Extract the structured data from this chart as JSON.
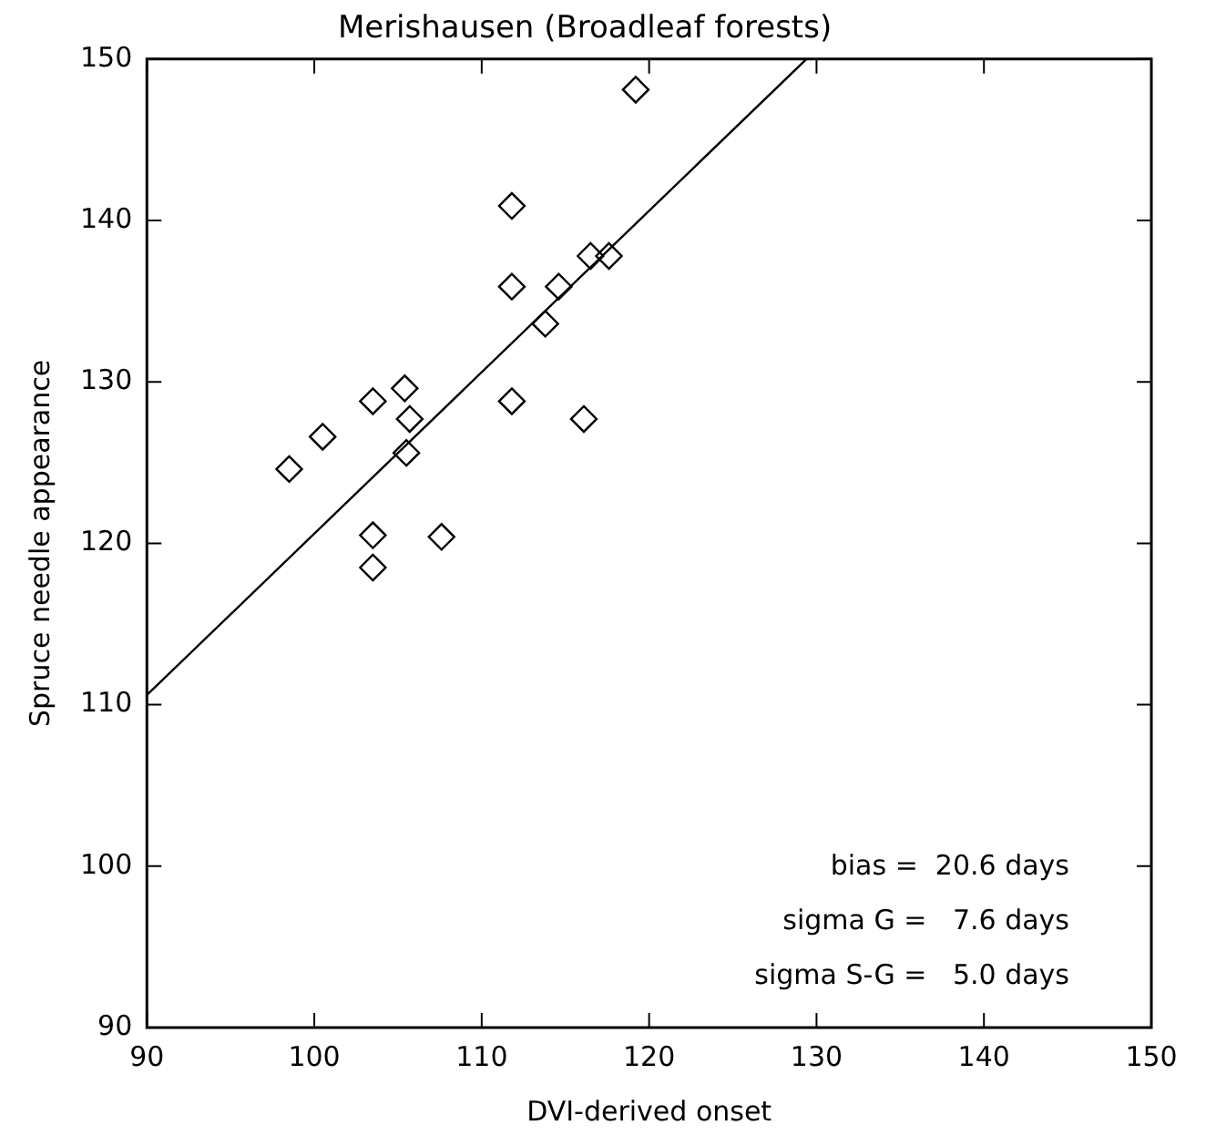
{
  "chart_data": {
    "type": "scatter",
    "title": "Merishausen (Broadleaf forests)",
    "xlabel": "DVI-derived onset",
    "ylabel": "Spruce needle appearance",
    "xlim": [
      90,
      150
    ],
    "ylim": [
      90,
      150
    ],
    "xticks": [
      90,
      100,
      110,
      120,
      130,
      140,
      150
    ],
    "yticks": [
      90,
      100,
      110,
      120,
      130,
      140,
      150
    ],
    "grid": false,
    "legend": false,
    "series": [
      {
        "marker": "diamond",
        "color": "#000000",
        "x": [
          98.5,
          100.5,
          103.5,
          105.4,
          105.7,
          105.5,
          103.5,
          103.5,
          107.6,
          111.8,
          116.1,
          111.8,
          119.2,
          111.8,
          113.8,
          114.6,
          116.5,
          117.6
        ],
        "values": [
          124.6,
          126.6,
          128.8,
          129.6,
          127.7,
          125.6,
          120.5,
          118.5,
          120.4,
          128.8,
          127.7,
          135.9,
          148.1,
          140.9,
          133.6,
          135.9,
          137.8,
          137.8
        ]
      },
      {
        "type": "line",
        "color": "#000000",
        "x": [
          90,
          129.4
        ],
        "values": [
          110.6,
          150
        ]
      }
    ],
    "annotations": [
      "bias =  20.6 days",
      "sigma G =   7.6 days",
      "sigma S-G =   5.0 days"
    ]
  }
}
